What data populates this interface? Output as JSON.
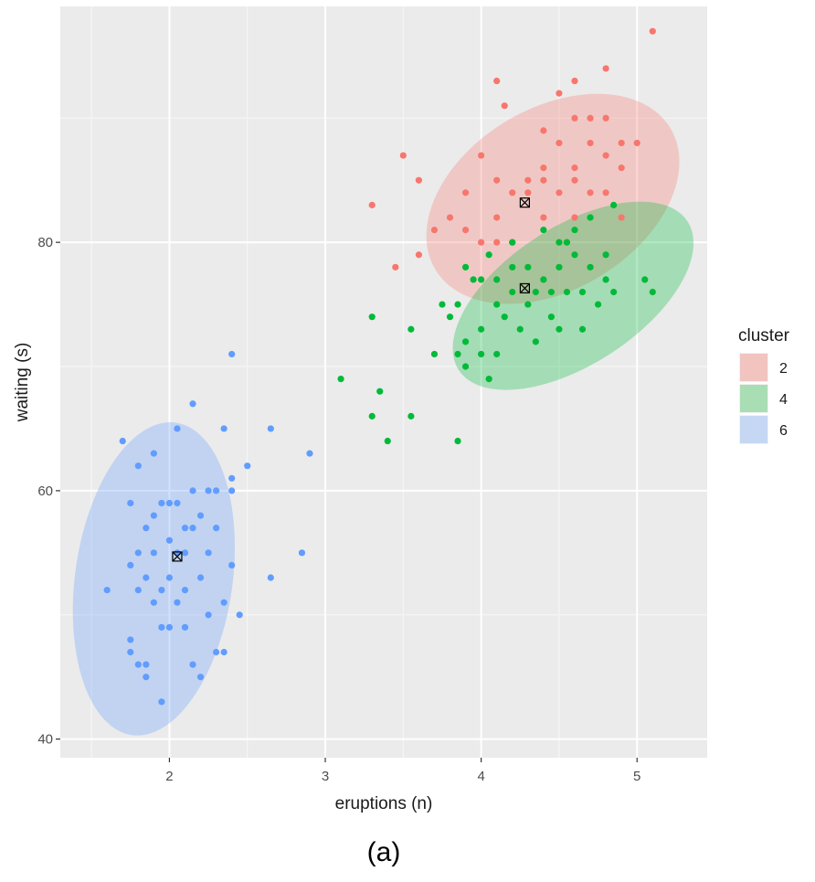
{
  "chart_data": {
    "type": "scatter",
    "xlabel": "eruptions (n)",
    "ylabel": "waiting (s)",
    "xlim": [
      1.3,
      5.45
    ],
    "ylim": [
      38.5,
      99
    ],
    "x_ticks": [
      2,
      3,
      4,
      5
    ],
    "y_ticks": [
      40,
      60,
      80
    ],
    "x_tick_labels": [
      "2",
      "3",
      "4",
      "5"
    ],
    "y_tick_labels": [
      "40",
      "60",
      "80"
    ],
    "grid": true,
    "legend_title": "cluster",
    "legend_position": "right",
    "series": [
      {
        "name": "2",
        "color": "#F8766D",
        "fill": "#F2C4C0",
        "centroid": [
          4.28,
          83.2
        ],
        "ellipse": {
          "cx": 4.46,
          "cy": 83.5,
          "rx": 0.88,
          "ry": 7.3,
          "rotate_deg": -31
        },
        "x": [
          5.1,
          4.1,
          4.8,
          4.5,
          4.6,
          4.7,
          4.15,
          4.6,
          4.8,
          4.4,
          4.7,
          4.8,
          4.5,
          4.4,
          4.6,
          4.9,
          4.0,
          3.5,
          5.0,
          4.3,
          4.1,
          4.3,
          4.4,
          4.9,
          4.6,
          3.6,
          4.5,
          3.9,
          4.2,
          4.7,
          4.8,
          3.8,
          4.9,
          4.6,
          3.3,
          4.4,
          4.1,
          3.9,
          3.7,
          4.1,
          4.0,
          3.6,
          4.2,
          3.45
        ],
        "y": [
          97,
          93,
          94,
          92,
          93,
          90,
          91,
          90,
          90,
          89,
          88,
          87,
          88,
          86,
          86,
          88,
          87,
          87,
          88,
          85,
          85,
          84,
          85,
          86,
          85,
          85,
          84,
          84,
          84,
          84,
          84,
          82,
          82,
          82,
          83,
          82,
          82,
          81,
          81,
          80,
          80,
          79,
          80,
          78
        ]
      },
      {
        "name": "4",
        "color": "#00BA38",
        "fill": "#A9DEB5",
        "centroid": [
          4.28,
          76.3
        ],
        "ellipse": {
          "cx": 4.59,
          "cy": 75.7,
          "rx": 0.875,
          "ry": 5.55,
          "rotate_deg": -33
        },
        "x": [
          4.85,
          4.7,
          4.4,
          4.6,
          4.55,
          4.5,
          4.2,
          4.8,
          4.6,
          4.05,
          4.5,
          4.3,
          4.7,
          4.2,
          3.9,
          4.4,
          4.1,
          4.0,
          4.8,
          3.95,
          4.65,
          4.55,
          4.85,
          4.45,
          4.35,
          5.05,
          4.2,
          4.1,
          3.85,
          4.3,
          5.1,
          3.75,
          4.45,
          4.15,
          4.75,
          3.8,
          4.25,
          3.3,
          4.5,
          4.0,
          4.65,
          4.35,
          3.55,
          3.7,
          3.9,
          4.1,
          4.0,
          3.85,
          4.05,
          3.1,
          3.9,
          3.35,
          3.3,
          3.4,
          3.55,
          3.85
        ],
        "y": [
          83,
          82,
          81,
          81,
          80,
          80,
          80,
          79,
          79,
          79,
          78,
          78,
          78,
          78,
          78,
          77,
          77,
          77,
          77,
          77,
          76,
          76,
          76,
          76,
          76,
          77,
          76,
          75,
          75,
          75,
          76,
          75,
          74,
          74,
          75,
          74,
          73,
          74,
          73,
          73,
          73,
          72,
          73,
          71,
          72,
          71,
          71,
          71,
          69,
          69,
          70,
          68,
          66,
          64,
          66,
          64
        ]
      },
      {
        "name": "6",
        "color": "#619CFF",
        "fill": "#C5D7F3",
        "centroid": [
          2.05,
          54.7
        ],
        "ellipse": {
          "cx": 1.9,
          "cy": 52.9,
          "rx": 0.505,
          "ry": 12.7,
          "rotate_deg": 8
        },
        "x": [
          2.4,
          2.15,
          2.35,
          2.05,
          1.7,
          2.65,
          1.9,
          2.5,
          1.8,
          2.4,
          2.3,
          2.15,
          2.25,
          2.0,
          1.95,
          2.05,
          1.75,
          2.2,
          1.9,
          2.1,
          1.85,
          2.15,
          2.3,
          2.0,
          2.1,
          1.8,
          2.25,
          1.9,
          2.05,
          2.4,
          1.75,
          2.85,
          2.0,
          2.2,
          1.85,
          2.1,
          1.95,
          2.9,
          2.65,
          1.8,
          2.35,
          2.05,
          1.6,
          1.9,
          2.25,
          1.95,
          1.75,
          2.1,
          2.3,
          1.85,
          2.0,
          2.45,
          2.15,
          1.8,
          2.35,
          1.75,
          2.2,
          1.85,
          1.95,
          2.4
        ],
        "y": [
          71,
          67,
          65,
          65,
          64,
          65,
          63,
          62,
          62,
          61,
          60,
          60,
          60,
          59,
          59,
          59,
          59,
          58,
          58,
          57,
          57,
          57,
          57,
          56,
          55,
          55,
          55,
          55,
          55,
          54,
          54,
          55,
          53,
          53,
          53,
          52,
          52,
          63,
          53,
          52,
          51,
          51,
          52,
          51,
          50,
          49,
          48,
          49,
          47,
          46,
          49,
          50,
          46,
          46,
          47,
          47,
          45,
          45,
          43,
          60
        ]
      }
    ],
    "caption": "(a)"
  }
}
